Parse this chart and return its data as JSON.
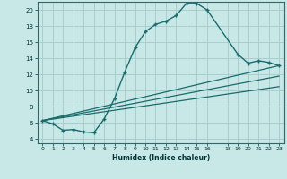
{
  "xlabel": "Humidex (Indice chaleur)",
  "xlim": [
    -0.5,
    23.5
  ],
  "ylim": [
    3.5,
    21.0
  ],
  "yticks": [
    4,
    6,
    8,
    10,
    12,
    14,
    16,
    18,
    20
  ],
  "xticks": [
    0,
    1,
    2,
    3,
    4,
    5,
    6,
    7,
    8,
    9,
    10,
    11,
    12,
    13,
    14,
    15,
    16,
    18,
    19,
    20,
    21,
    22,
    23
  ],
  "xtick_labels": [
    "0",
    "1",
    "2",
    "3",
    "4",
    "5",
    "6",
    "7",
    "8",
    "9",
    "10",
    "11",
    "12",
    "13",
    "14",
    "15",
    "16",
    "18",
    "19",
    "20",
    "21",
    "22",
    "23"
  ],
  "bg_color": "#c8e8e8",
  "grid_color": "#aacece",
  "line_color": "#1a6b6b",
  "line1_x": [
    0,
    1,
    2,
    3,
    4,
    5,
    6,
    7,
    8,
    9,
    10,
    11,
    12,
    13,
    14,
    15,
    16,
    19,
    20,
    21,
    22,
    23
  ],
  "line1_y": [
    6.3,
    5.9,
    5.1,
    5.2,
    4.9,
    4.8,
    6.5,
    9.0,
    12.3,
    15.3,
    17.3,
    18.2,
    18.6,
    19.3,
    20.8,
    20.8,
    20.0,
    14.5,
    13.4,
    13.7,
    13.5,
    13.1
  ],
  "line2_x": [
    0,
    23
  ],
  "line2_y": [
    6.3,
    13.1
  ],
  "line3_x": [
    0,
    23
  ],
  "line3_y": [
    6.3,
    11.8
  ],
  "line4_x": [
    0,
    23
  ],
  "line4_y": [
    6.3,
    10.5
  ]
}
